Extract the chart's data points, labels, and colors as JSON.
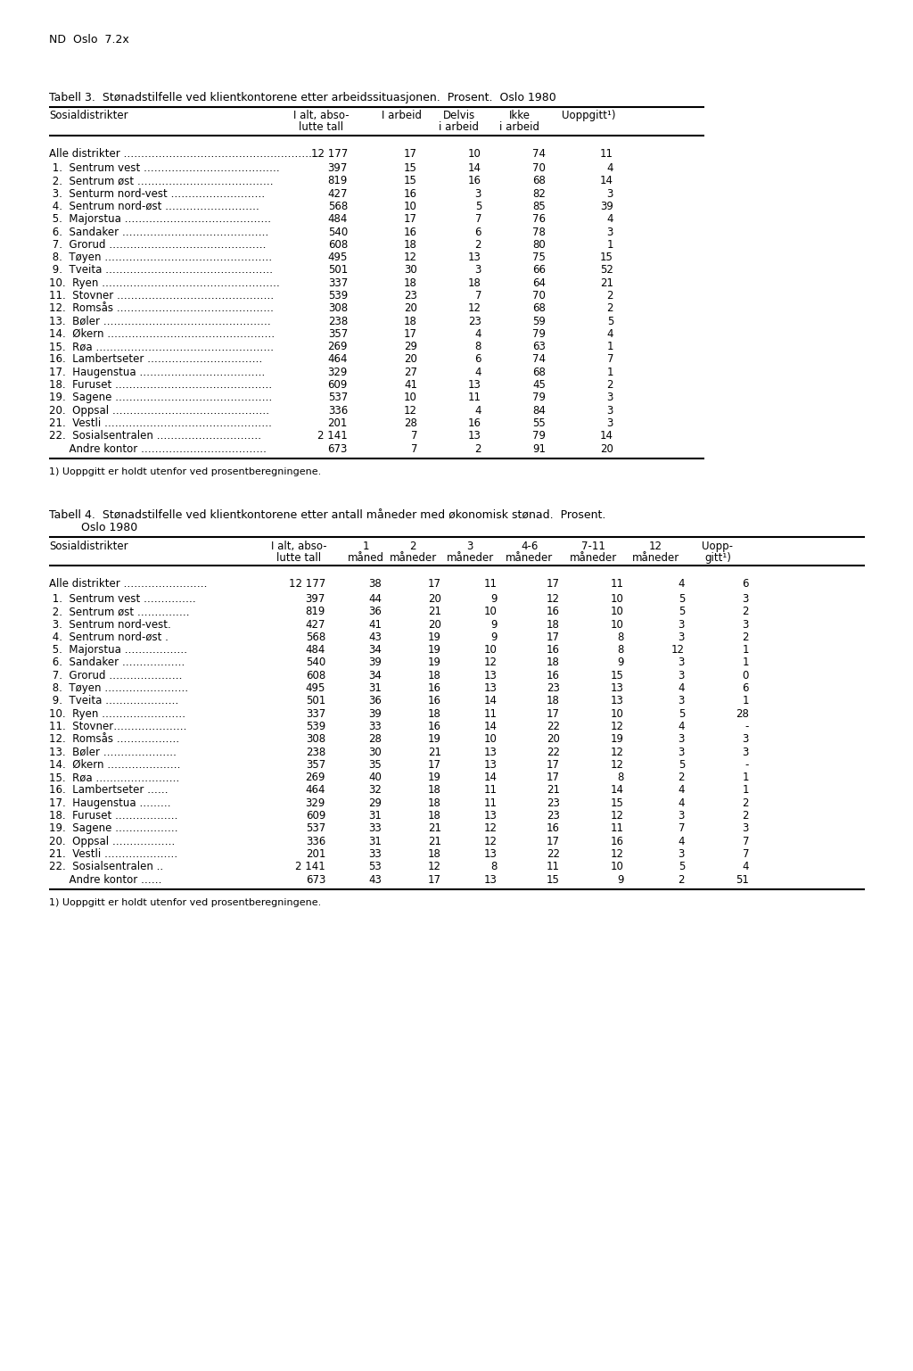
{
  "page_header": "ND  Oslo  7.2x",
  "table3_title": "Tabell 3.  Stønadstilfelle ved klientkontorene etter arbeidssituasjonen.  Prosent.  Oslo 1980",
  "table3_col_headers": [
    [
      "Sosialdistrikter",
      "",
      ""
    ],
    [
      "I alt, abso-",
      "lutte tall",
      ""
    ],
    [
      "I arbeid",
      "",
      ""
    ],
    [
      "Delvis",
      "i arbeid",
      ""
    ],
    [
      "Ikke",
      "i arbeid",
      ""
    ],
    [
      "Uoppgitt",
      "",
      ""
    ]
  ],
  "table3_footnote": "1) Uoppgitt er holdt utenfor ved prosentberegningene.",
  "table3_alle_label": "Alle distrikter …………………………………………………",
  "table3_alle_vals": [
    "12 177",
    "17",
    "10",
    "74",
    "11"
  ],
  "table3_rows": [
    {
      "label": " 1.  Sentrum vest …………………………………",
      "vals": [
        "397",
        "15",
        "14",
        "70",
        "4"
      ]
    },
    {
      "label": " 2.  Sentrum øst …………………………………",
      "vals": [
        "819",
        "15",
        "16",
        "68",
        "14"
      ]
    },
    {
      "label": " 3.  Senturm nord-vest ………………………",
      "vals": [
        "427",
        "16",
        "3",
        "82",
        "3"
      ]
    },
    {
      "label": " 4.  Sentrum nord-øst ………………………",
      "vals": [
        "568",
        "10",
        "5",
        "85",
        "39"
      ]
    },
    {
      "label": " 5.  Majorstua ……………………………………",
      "vals": [
        "484",
        "17",
        "7",
        "76",
        "4"
      ]
    },
    {
      "label": " 6.  Sandaker ……………………………………",
      "vals": [
        "540",
        "16",
        "6",
        "78",
        "3"
      ]
    },
    {
      "label": " 7.  Grorud ………………………………………",
      "vals": [
        "608",
        "18",
        "2",
        "80",
        "1"
      ]
    },
    {
      "label": " 8.  Tøyen …………………………………………",
      "vals": [
        "495",
        "12",
        "13",
        "75",
        "15"
      ]
    },
    {
      "label": " 9.  Tveita …………………………………………",
      "vals": [
        "501",
        "30",
        "3",
        "66",
        "52"
      ]
    },
    {
      "label": "10.  Ryen ……………………………………………",
      "vals": [
        "337",
        "18",
        "18",
        "64",
        "21"
      ]
    },
    {
      "label": "11.  Stovner ………………………………………",
      "vals": [
        "539",
        "23",
        "7",
        "70",
        "2"
      ]
    },
    {
      "label": "12.  Romsås ………………………………………",
      "vals": [
        "308",
        "20",
        "12",
        "68",
        "2"
      ]
    },
    {
      "label": "13.  Bøler …………………………………………",
      "vals": [
        "238",
        "18",
        "23",
        "59",
        "5"
      ]
    },
    {
      "label": "14.  Økern …………………………………………",
      "vals": [
        "357",
        "17",
        "4",
        "79",
        "4"
      ]
    },
    {
      "label": "15.  Røa ……………………………………………",
      "vals": [
        "269",
        "29",
        "8",
        "63",
        "1"
      ]
    },
    {
      "label": "16.  Lambertseter ……………………………",
      "vals": [
        "464",
        "20",
        "6",
        "74",
        "7"
      ]
    },
    {
      "label": "17.  Haugenstua ………………………………",
      "vals": [
        "329",
        "27",
        "4",
        "68",
        "1"
      ]
    },
    {
      "label": "18.  Furuset ………………………………………",
      "vals": [
        "609",
        "41",
        "13",
        "45",
        "2"
      ]
    },
    {
      "label": "19.  Sagene ………………………………………",
      "vals": [
        "537",
        "10",
        "11",
        "79",
        "3"
      ]
    },
    {
      "label": "20.  Oppsal ………………………………………",
      "vals": [
        "336",
        "12",
        "4",
        "84",
        "3"
      ]
    },
    {
      "label": "21.  Vestli …………………………………………",
      "vals": [
        "201",
        "28",
        "16",
        "55",
        "3"
      ]
    },
    {
      "label": "22.  Sosialsentralen …………………………",
      "vals": [
        "2 141",
        "7",
        "13",
        "79",
        "14"
      ]
    },
    {
      "label": "      Andre kontor ………………………………",
      "vals": [
        "673",
        "7",
        "2",
        "91",
        "20"
      ]
    }
  ],
  "table4_title1": "Tabell 4.  Stønadstilfelle ved klientkontorene etter antall måneder med økonomisk stønad.  Prosent.",
  "table4_title2": "         Oslo 1980",
  "table4_footnote": "1) Uoppgitt er holdt utenfor ved prosentberegningene.",
  "table4_alle_label": "Alle distrikter ……………………",
  "table4_alle_vals": [
    "12 177",
    "38",
    "17",
    "11",
    "17",
    "11",
    "4",
    "6"
  ],
  "table4_rows": [
    {
      "label": " 1.  Sentrum vest ……………",
      "vals": [
        "397",
        "44",
        "20",
        "9",
        "12",
        "10",
        "5",
        "3"
      ]
    },
    {
      "label": " 2.  Sentrum øst ……………",
      "vals": [
        "819",
        "36",
        "21",
        "10",
        "16",
        "10",
        "5",
        "2"
      ]
    },
    {
      "label": " 3.  Sentrum nord-vest.",
      "vals": [
        "427",
        "41",
        "20",
        "9",
        "18",
        "10",
        "3",
        "3"
      ]
    },
    {
      "label": " 4.  Sentrum nord-øst .",
      "vals": [
        "568",
        "43",
        "19",
        "9",
        "17",
        "8",
        "3",
        "2"
      ]
    },
    {
      "label": " 5.  Majorstua ………………",
      "vals": [
        "484",
        "34",
        "19",
        "10",
        "16",
        "8",
        "12",
        "1"
      ]
    },
    {
      "label": " 6.  Sandaker ………………",
      "vals": [
        "540",
        "39",
        "19",
        "12",
        "18",
        "9",
        "3",
        "1"
      ]
    },
    {
      "label": " 7.  Grorud …………………",
      "vals": [
        "608",
        "34",
        "18",
        "13",
        "16",
        "15",
        "3",
        "0"
      ]
    },
    {
      "label": " 8.  Tøyen ……………………",
      "vals": [
        "495",
        "31",
        "16",
        "13",
        "23",
        "13",
        "4",
        "6"
      ]
    },
    {
      "label": " 9.  Tveita …………………",
      "vals": [
        "501",
        "36",
        "16",
        "14",
        "18",
        "13",
        "3",
        "1"
      ]
    },
    {
      "label": "10.  Ryen ……………………",
      "vals": [
        "337",
        "39",
        "18",
        "11",
        "17",
        "10",
        "5",
        "28"
      ]
    },
    {
      "label": "11.  Stovner…………………",
      "vals": [
        "539",
        "33",
        "16",
        "14",
        "22",
        "12",
        "4",
        "-"
      ]
    },
    {
      "label": "12.  Romsås ………………",
      "vals": [
        "308",
        "28",
        "19",
        "10",
        "20",
        "19",
        "3",
        "3"
      ]
    },
    {
      "label": "13.  Bøler …………………",
      "vals": [
        "238",
        "30",
        "21",
        "13",
        "22",
        "12",
        "3",
        "3"
      ]
    },
    {
      "label": "14.  Økern …………………",
      "vals": [
        "357",
        "35",
        "17",
        "13",
        "17",
        "12",
        "5",
        "-"
      ]
    },
    {
      "label": "15.  Røa ……………………",
      "vals": [
        "269",
        "40",
        "19",
        "14",
        "17",
        "8",
        "2",
        "1"
      ]
    },
    {
      "label": "16.  Lambertseter ……",
      "vals": [
        "464",
        "32",
        "18",
        "11",
        "21",
        "14",
        "4",
        "1"
      ]
    },
    {
      "label": "17.  Haugenstua ………",
      "vals": [
        "329",
        "29",
        "18",
        "11",
        "23",
        "15",
        "4",
        "2"
      ]
    },
    {
      "label": "18.  Furuset ………………",
      "vals": [
        "609",
        "31",
        "18",
        "13",
        "23",
        "12",
        "3",
        "2"
      ]
    },
    {
      "label": "19.  Sagene ………………",
      "vals": [
        "537",
        "33",
        "21",
        "12",
        "16",
        "11",
        "7",
        "3"
      ]
    },
    {
      "label": "20.  Oppsal ………………",
      "vals": [
        "336",
        "31",
        "21",
        "12",
        "17",
        "16",
        "4",
        "7"
      ]
    },
    {
      "label": "21.  Vestli …………………",
      "vals": [
        "201",
        "33",
        "18",
        "13",
        "22",
        "12",
        "3",
        "7"
      ]
    },
    {
      "label": "22.  Sosialsentralen ..",
      "vals": [
        "2 141",
        "53",
        "12",
        "8",
        "11",
        "10",
        "5",
        "4"
      ]
    },
    {
      "label": "      Andre kontor ……",
      "vals": [
        "673",
        "43",
        "17",
        "13",
        "15",
        "9",
        "2",
        "51"
      ]
    }
  ],
  "bg_color": "#ffffff",
  "text_color": "#000000"
}
